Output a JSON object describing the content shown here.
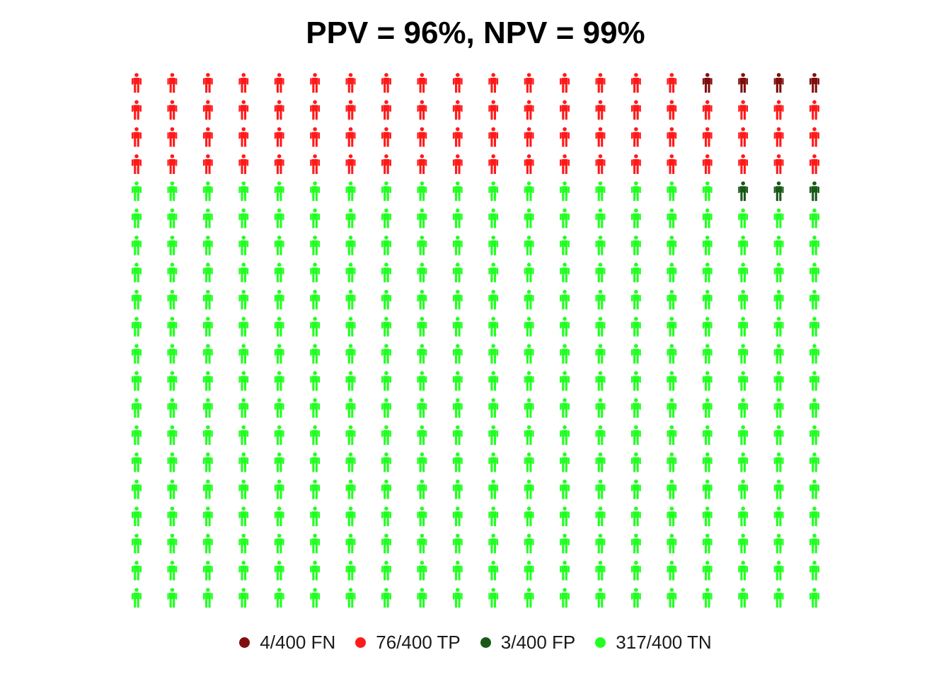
{
  "chart_data": {
    "type": "icon-array",
    "title": "PPV = 96%, NPV = 99%",
    "total": 400,
    "grid": {
      "columns": 20,
      "rows": 20
    },
    "categories": [
      {
        "key": "FN",
        "label": "4/400 FN",
        "count": 4,
        "color": "#7f0f0f"
      },
      {
        "key": "TP",
        "label": "76/400 TP",
        "count": 76,
        "color": "#ff1a1a"
      },
      {
        "key": "FP",
        "label": "3/400 FP",
        "count": 3,
        "color": "#185918"
      },
      {
        "key": "TN",
        "label": "317/400 TN",
        "count": 317,
        "color": "#22ff22"
      }
    ],
    "legend_position": "bottom"
  }
}
